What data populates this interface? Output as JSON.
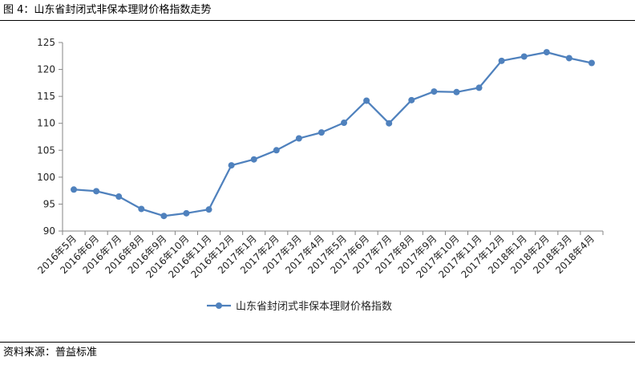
{
  "figure": {
    "title": "图 4：山东省封闭式非保本理财价格指数走势",
    "source": "资料来源：普益标准"
  },
  "chart_data": {
    "type": "line",
    "categories": [
      "2016年5月",
      "2016年6月",
      "2016年7月",
      "2016年8月",
      "2016年9月",
      "2016年10月",
      "2016年11月",
      "2016年12月",
      "2017年1月",
      "2017年2月",
      "2017年3月",
      "2017年4月",
      "2017年5月",
      "2017年6月",
      "2017年7月",
      "2017年8月",
      "2017年9月",
      "2017年10月",
      "2017年11月",
      "2017年12月",
      "2018年1月",
      "2018年2月",
      "2018年3月",
      "2018年4月"
    ],
    "series": [
      {
        "name": "山东省封闭式非保本理财价格指数",
        "values": [
          97.7,
          97.4,
          96.4,
          94.1,
          92.8,
          93.3,
          94.0,
          102.2,
          103.3,
          105.0,
          107.2,
          108.3,
          110.1,
          114.2,
          110.0,
          114.3,
          115.9,
          115.8,
          116.6,
          121.6,
          122.4,
          123.2,
          122.1,
          121.2
        ],
        "color": "#4f81bd"
      }
    ],
    "ylim": [
      90,
      125
    ],
    "yticks": [
      90,
      95,
      100,
      105,
      110,
      115,
      120,
      125
    ],
    "legend_position": "bottom",
    "grid": false
  }
}
